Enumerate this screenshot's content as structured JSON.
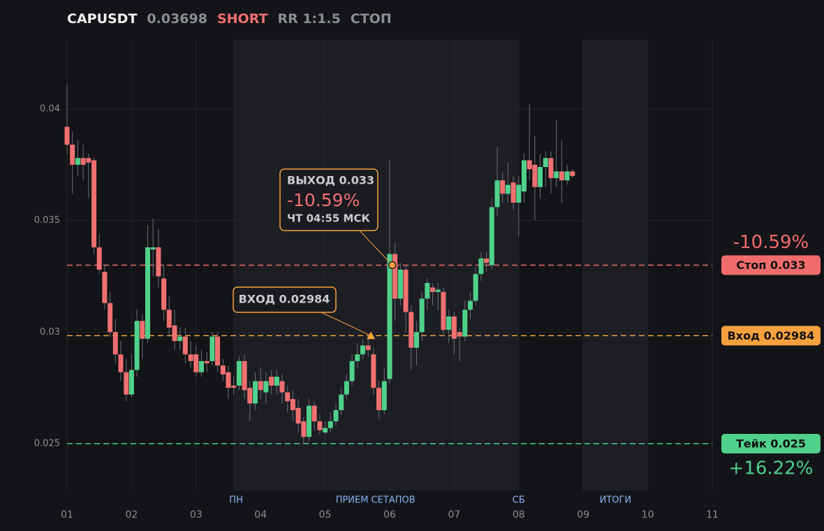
{
  "header": {
    "symbol": "CAPUSDT",
    "price": "0.03698",
    "side": "SHORT",
    "rr": "RR 1:1.5",
    "status": "СТОП"
  },
  "chart_data": {
    "type": "candlestick",
    "x": [
      1,
      1.083,
      1.167,
      1.25,
      1.333,
      1.417,
      1.5,
      1.583,
      1.667,
      1.75,
      1.833,
      1.917,
      2,
      2.083,
      2.167,
      2.25,
      2.333,
      2.417,
      2.5,
      2.583,
      2.667,
      2.75,
      2.833,
      2.917,
      3,
      3.083,
      3.167,
      3.25,
      3.333,
      3.417,
      3.5,
      3.583,
      3.667,
      3.75,
      3.833,
      3.917,
      4,
      4.083,
      4.167,
      4.25,
      4.333,
      4.417,
      4.5,
      4.583,
      4.667,
      4.75,
      4.833,
      4.917,
      5,
      5.083,
      5.167,
      5.25,
      5.333,
      5.417,
      5.5,
      5.583,
      5.667,
      5.75,
      5.833,
      5.917,
      6,
      6.083,
      6.167,
      6.25,
      6.333,
      6.417,
      6.5,
      6.583,
      6.667,
      6.75,
      6.833,
      6.917,
      7,
      7.083,
      7.167,
      7.25,
      7.333,
      7.417,
      7.5,
      7.583,
      7.667,
      7.75,
      7.833,
      7.917,
      8,
      8.083,
      8.167,
      8.25,
      8.333,
      8.417,
      8.5,
      8.583,
      8.667,
      8.75,
      8.833
    ],
    "open": [
      0.0392,
      0.0384,
      0.0375,
      0.0378,
      0.0378,
      0.0377,
      0.0338,
      0.0327,
      0.0313,
      0.03,
      0.029,
      0.0282,
      0.0272,
      0.0283,
      0.0305,
      0.0297,
      0.0337,
      0.0338,
      0.0324,
      0.031,
      0.0303,
      0.0296,
      0.0298,
      0.029,
      0.029,
      0.0282,
      0.0287,
      0.0287,
      0.0298,
      0.0285,
      0.0282,
      0.0276,
      0.0276,
      0.0287,
      0.0275,
      0.0268,
      0.0278,
      0.0273,
      0.028,
      0.0276,
      0.0278,
      0.0273,
      0.027,
      0.0266,
      0.026,
      0.0253,
      0.0267,
      0.026,
      0.0255,
      0.0257,
      0.026,
      0.0265,
      0.0272,
      0.0278,
      0.0287,
      0.029,
      0.0294,
      0.029,
      0.0275,
      0.0265,
      0.0279,
      0.0335,
      0.0315,
      0.0328,
      0.0309,
      0.0293,
      0.03,
      0.0315,
      0.032,
      0.0318,
      0.0318,
      0.0301,
      0.0307,
      0.03,
      0.0298,
      0.031,
      0.0314,
      0.0326,
      0.0333,
      0.033,
      0.0356,
      0.0368,
      0.0362,
      0.0367,
      0.0358,
      0.0363,
      0.0377,
      0.0375,
      0.0365,
      0.0374,
      0.0378,
      0.0369,
      0.0372,
      0.0368,
      0.0372
    ],
    "high": [
      0.0411,
      0.039,
      0.0386,
      0.0384,
      0.038,
      0.0378,
      0.0344,
      0.033,
      0.0318,
      0.0306,
      0.0296,
      0.0288,
      0.029,
      0.031,
      0.0308,
      0.0348,
      0.0351,
      0.0346,
      0.033,
      0.0316,
      0.031,
      0.0302,
      0.0302,
      0.0296,
      0.0294,
      0.0292,
      0.0291,
      0.03,
      0.03,
      0.0288,
      0.0285,
      0.028,
      0.0289,
      0.029,
      0.0278,
      0.0282,
      0.0284,
      0.0282,
      0.0283,
      0.0283,
      0.0281,
      0.0276,
      0.0274,
      0.027,
      0.0262,
      0.027,
      0.0269,
      0.0263,
      0.026,
      0.0264,
      0.0268,
      0.0275,
      0.0281,
      0.029,
      0.0295,
      0.0297,
      0.0299,
      0.0293,
      0.0278,
      0.0284,
      0.0377,
      0.034,
      0.0331,
      0.033,
      0.0312,
      0.0305,
      0.0318,
      0.0324,
      0.0322,
      0.0322,
      0.032,
      0.031,
      0.0309,
      0.0302,
      0.0314,
      0.0318,
      0.0329,
      0.0336,
      0.0336,
      0.036,
      0.0383,
      0.0372,
      0.0376,
      0.037,
      0.037,
      0.038,
      0.0402,
      0.0388,
      0.038,
      0.0381,
      0.0381,
      0.0395,
      0.0386,
      0.0375,
      0.0373
    ],
    "low": [
      0.038,
      0.0362,
      0.037,
      0.0368,
      0.036,
      0.0335,
      0.0326,
      0.031,
      0.0298,
      0.0286,
      0.0278,
      0.0269,
      0.0271,
      0.028,
      0.0288,
      0.0295,
      0.0325,
      0.032,
      0.0305,
      0.0298,
      0.0292,
      0.0292,
      0.0286,
      0.0284,
      0.028,
      0.028,
      0.0282,
      0.0285,
      0.0282,
      0.0278,
      0.027,
      0.0272,
      0.0274,
      0.027,
      0.026,
      0.0265,
      0.027,
      0.0268,
      0.0272,
      0.0272,
      0.0268,
      0.0264,
      0.026,
      0.0255,
      0.025,
      0.0251,
      0.0256,
      0.0254,
      0.0254,
      0.0255,
      0.0258,
      0.0263,
      0.027,
      0.0276,
      0.0284,
      0.0288,
      0.0289,
      0.0272,
      0.0261,
      0.0263,
      0.0277,
      0.0305,
      0.0312,
      0.03,
      0.0283,
      0.0285,
      0.0296,
      0.031,
      0.0312,
      0.031,
      0.0298,
      0.0295,
      0.029,
      0.0287,
      0.0296,
      0.0306,
      0.0312,
      0.0323,
      0.0327,
      0.0328,
      0.0352,
      0.0358,
      0.0358,
      0.0355,
      0.0343,
      0.0358,
      0.0368,
      0.035,
      0.036,
      0.0365,
      0.0362,
      0.0365,
      0.0358,
      0.0366,
      0.0369
    ],
    "close": [
      0.0384,
      0.0375,
      0.0378,
      0.0375,
      0.0376,
      0.0338,
      0.0328,
      0.0313,
      0.03,
      0.029,
      0.0282,
      0.0272,
      0.0283,
      0.0305,
      0.0297,
      0.0338,
      0.0338,
      0.0325,
      0.031,
      0.0302,
      0.0296,
      0.0298,
      0.029,
      0.0287,
      0.0282,
      0.0287,
      0.0286,
      0.0298,
      0.0285,
      0.0281,
      0.0275,
      0.0275,
      0.0287,
      0.0274,
      0.0268,
      0.0278,
      0.0274,
      0.0278,
      0.0276,
      0.028,
      0.0273,
      0.0269,
      0.0265,
      0.0259,
      0.0253,
      0.0267,
      0.026,
      0.0256,
      0.0257,
      0.026,
      0.0265,
      0.0272,
      0.0278,
      0.0287,
      0.029,
      0.0294,
      0.0292,
      0.0275,
      0.0265,
      0.0278,
      0.0335,
      0.0315,
      0.0328,
      0.0309,
      0.0293,
      0.03,
      0.0315,
      0.0322,
      0.0318,
      0.0319,
      0.0301,
      0.0307,
      0.0297,
      0.0298,
      0.031,
      0.0314,
      0.0326,
      0.0333,
      0.0331,
      0.0356,
      0.0368,
      0.0362,
      0.0366,
      0.0358,
      0.0366,
      0.0377,
      0.0373,
      0.0365,
      0.0374,
      0.0378,
      0.0369,
      0.0372,
      0.0368,
      0.0372,
      0.037
    ],
    "up_color": "#4fd18b",
    "down_color": "#f07070",
    "xlim": [
      1,
      11
    ],
    "ylim": [
      0.0229,
      0.0431
    ],
    "xticks": [
      {
        "value": 1,
        "label": "01"
      },
      {
        "value": 2,
        "label": "02"
      },
      {
        "value": 3,
        "label": "03"
      },
      {
        "value": 4,
        "label": "04"
      },
      {
        "value": 5,
        "label": "05"
      },
      {
        "value": 6,
        "label": "06"
      },
      {
        "value": 7,
        "label": "07"
      },
      {
        "value": 8,
        "label": "08"
      },
      {
        "value": 9,
        "label": "09"
      },
      {
        "value": 10,
        "label": "10"
      },
      {
        "value": 11,
        "label": "11"
      }
    ],
    "yticks": [
      0.025,
      0.03,
      0.035,
      0.04
    ],
    "grid": true,
    "regions": [
      {
        "from": 3.575,
        "to": 7.995
      },
      {
        "from": 8.994,
        "to": 9.99
      }
    ],
    "sessions": [
      {
        "x": 3.62,
        "label": "ПН"
      },
      {
        "x": 5.78,
        "label": "ПРИЕМ СЕТАПОВ"
      },
      {
        "x": 8.0,
        "label": "СБ"
      },
      {
        "x": 9.5,
        "label": "ИТОГИ"
      }
    ],
    "levels": [
      {
        "value": 0.033,
        "label": "Стоп 0.033",
        "color": "#f06c6c",
        "pct": "-10.59%"
      },
      {
        "value": 0.02984,
        "label": "Вход 0.02984",
        "color": "#f5a13d"
      },
      {
        "value": 0.025,
        "label": "Тейк 0.025",
        "color": "#4fd18b",
        "pct": "+16.22%"
      }
    ],
    "exit": {
      "x": 6.04,
      "y": 0.033,
      "title": "ВЫХОД 0.033",
      "pct": "-10.59%",
      "time": "ЧТ 04:55 МСК"
    },
    "entry": {
      "x": 5.71,
      "y": 0.02984,
      "label": "ВХОД 0.02984"
    }
  }
}
